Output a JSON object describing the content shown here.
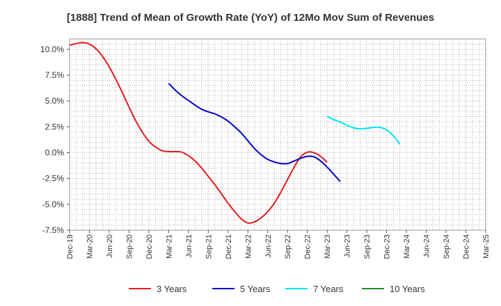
{
  "chart_data": {
    "type": "line",
    "title": "[1888]  Trend of Mean of Growth Rate (YoY) of 12Mo Mov Sum of Revenues",
    "xlabel": "",
    "ylabel": "",
    "ylim": [
      -7.5,
      11.0
    ],
    "yticks": [
      -7.5,
      -5.0,
      -2.5,
      0.0,
      2.5,
      5.0,
      7.5,
      10.0
    ],
    "ytick_labels": [
      "-7.5%",
      "-5.0%",
      "-2.5%",
      "0.0%",
      "2.5%",
      "5.0%",
      "7.5%",
      "10.0%"
    ],
    "x_tick_labels": [
      "Dec-19",
      "Mar-20",
      "Jun-20",
      "Sep-20",
      "Dec-20",
      "Mar-21",
      "Jun-21",
      "Sep-21",
      "Dec-21",
      "Mar-22",
      "Jun-22",
      "Sep-22",
      "Dec-22",
      "Mar-23",
      "Jun-23",
      "Sep-23",
      "Dec-23",
      "Mar-24",
      "Jun-24",
      "Sep-24",
      "Dec-24",
      "Mar-25"
    ],
    "x_start": "Dec-19",
    "n_months": 63,
    "grid": true,
    "legend_position": "bottom",
    "series": [
      {
        "name": "3 Years",
        "color": "#e31a1c",
        "start_month": 0,
        "values": [
          10.4,
          10.55,
          10.65,
          10.5,
          10.05,
          9.3,
          8.3,
          7.1,
          5.8,
          4.4,
          3.1,
          2.0,
          1.1,
          0.55,
          0.2,
          0.1,
          0.1,
          0.05,
          -0.3,
          -0.8,
          -1.5,
          -2.3,
          -3.1,
          -4.0,
          -4.9,
          -5.7,
          -6.4,
          -6.8,
          -6.7,
          -6.3,
          -5.7,
          -4.9,
          -3.8,
          -2.6,
          -1.4,
          -0.4,
          0.05,
          0.0,
          -0.35,
          -0.95
        ]
      },
      {
        "name": "5 Years",
        "color": "#0000cc",
        "start_month": 15,
        "values": [
          6.7,
          6.05,
          5.5,
          5.05,
          4.6,
          4.2,
          3.95,
          3.75,
          3.45,
          3.05,
          2.5,
          1.9,
          1.15,
          0.4,
          -0.2,
          -0.65,
          -0.9,
          -1.05,
          -1.05,
          -0.8,
          -0.55,
          -0.35,
          -0.4,
          -0.8,
          -1.4,
          -2.1,
          -2.8
        ]
      },
      {
        "name": "7 Years",
        "color": "#00e5ee",
        "start_month": 39,
        "values": [
          3.5,
          3.2,
          2.95,
          2.65,
          2.4,
          2.3,
          2.35,
          2.45,
          2.45,
          2.2,
          1.65,
          0.8
        ]
      },
      {
        "name": "10 Years",
        "color": "#228b22",
        "start_month": 0,
        "values": []
      }
    ]
  }
}
